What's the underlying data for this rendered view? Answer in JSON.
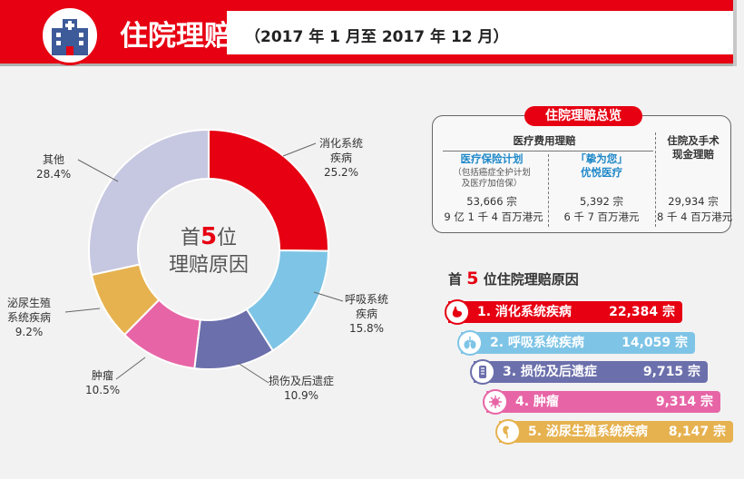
{
  "header": {
    "title": "住院理赔",
    "subtitle": "（2017 年 1 月至 2017 年 12 月）",
    "icon": "hospital-icon"
  },
  "colors": {
    "brand_red": "#e60012",
    "digestive": "#e60012",
    "respiratory": "#7ec4e6",
    "injury": "#6b6fab",
    "tumor": "#e765a6",
    "urogenital": "#e6b250",
    "other": "#c6c7e0"
  },
  "chart_data": {
    "type": "pie",
    "donut": true,
    "center_label": {
      "prefix": "首",
      "number": "5",
      "suffix": "位",
      "line2": "理赔原因"
    },
    "categories": [
      "消化系统疾病",
      "呼吸系统疾病",
      "损伤及后遗症",
      "肿瘤",
      "泌尿生殖系统疾病",
      "其他"
    ],
    "display_labels": [
      [
        "消化系统",
        "疾病"
      ],
      [
        "呼吸系统",
        "疾病"
      ],
      [
        "损伤及后遗症"
      ],
      [
        "肿瘤"
      ],
      [
        "泌尿生殖",
        "系统疾病"
      ],
      [
        "其他"
      ]
    ],
    "values": [
      25.2,
      15.8,
      10.9,
      10.5,
      9.2,
      28.4
    ],
    "value_labels": [
      "25.2%",
      "15.8%",
      "10.9%",
      "10.5%",
      "9.2%",
      "28.4%"
    ]
  },
  "overview": {
    "title": "住院理赔总览",
    "col_group_title": "医疗费用理赔",
    "col1": {
      "name": "医疗保险计划",
      "note1": "（包括癌症全护计划",
      "note2": "及医疗加倍保）",
      "count": "53,666 宗",
      "amount": "9 亿 1 千 4 百万港元"
    },
    "col2": {
      "name1": "「挚为您」",
      "name2": "优悦医疗",
      "count": "5,392 宗",
      "amount": "6 千 7 百万港元"
    },
    "col3": {
      "name1": "住院及手术",
      "name2": "现金理赔",
      "count": "29,934 宗",
      "amount": "8 千 4 百万港元"
    }
  },
  "top5": {
    "title_prefix": "首",
    "title_number": "5",
    "title_suffix": "位住院理赔原因",
    "items": [
      {
        "label": "1. 消化系统疾病",
        "value": "22,384 宗",
        "claims": 22384,
        "icon": "stomach-icon"
      },
      {
        "label": "2. 呼吸系统疾病",
        "value": "14,059 宗",
        "claims": 14059,
        "icon": "lungs-icon"
      },
      {
        "label": "3. 损伤及后遗症",
        "value": "9,715 宗",
        "claims": 9715,
        "icon": "bandage-icon"
      },
      {
        "label": "4. 肿瘤",
        "value": "9,314 宗",
        "claims": 9314,
        "icon": "virus-icon"
      },
      {
        "label": "5. 泌尿生殖系统疾病",
        "value": "8,147 宗",
        "claims": 8147,
        "icon": "kidney-icon"
      }
    ]
  }
}
